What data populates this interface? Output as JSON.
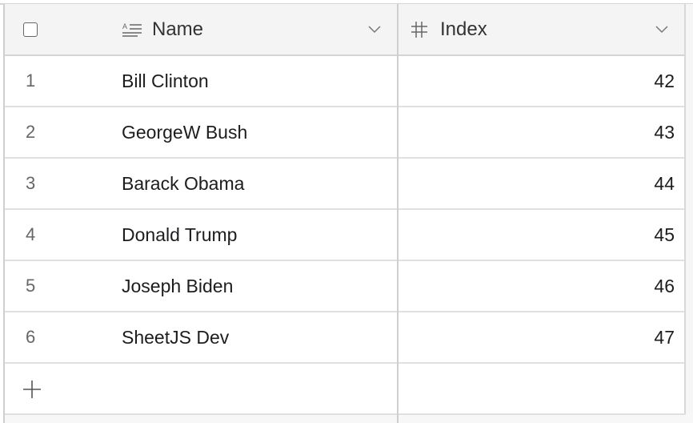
{
  "columns": [
    {
      "label": "Name",
      "icon": "text-field-icon"
    },
    {
      "label": "Index",
      "icon": "hash-icon"
    }
  ],
  "rows": [
    {
      "num": "1",
      "name": "Bill Clinton",
      "index": "42"
    },
    {
      "num": "2",
      "name": "GeorgeW Bush",
      "index": "43"
    },
    {
      "num": "3",
      "name": "Barack Obama",
      "index": "44"
    },
    {
      "num": "4",
      "name": "Donald Trump",
      "index": "45"
    },
    {
      "num": "5",
      "name": "Joseph Biden",
      "index": "46"
    },
    {
      "num": "6",
      "name": "SheetJS Dev",
      "index": "47"
    }
  ],
  "add_row_icon": "plus-icon",
  "colors": {
    "header_bg": "#f4f4f4",
    "border": "#cfcfcf"
  }
}
